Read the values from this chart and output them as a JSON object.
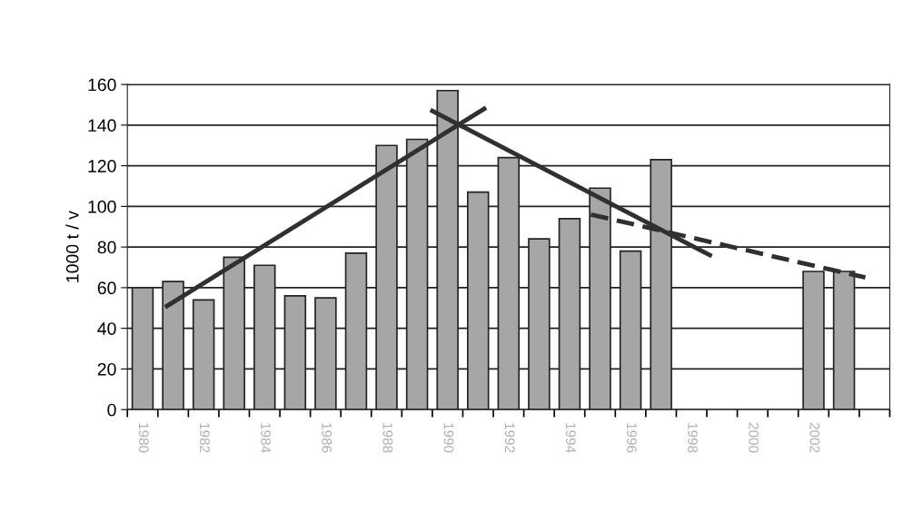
{
  "chart_data": {
    "type": "bar",
    "ylabel": "1000 t / v",
    "x": [
      1980,
      1981,
      1982,
      1983,
      1984,
      1985,
      1986,
      1987,
      1988,
      1989,
      1990,
      1991,
      1992,
      1993,
      1994,
      1995,
      1996,
      1997,
      1998,
      1999,
      2000,
      2001,
      2002,
      2003
    ],
    "series": [
      {
        "color": "#a6a6a6",
        "values": [
          60,
          63,
          54,
          75,
          71,
          56,
          55,
          77,
          130,
          133,
          157,
          107,
          124,
          84,
          94,
          109,
          78,
          123,
          null,
          null,
          null,
          null,
          68,
          68
        ]
      },
      {
        "type": "line",
        "color": "#303030",
        "line_style": "solid",
        "x": [
          1980.8,
          1991.2
        ],
        "values": [
          51,
          148
        ]
      },
      {
        "type": "line",
        "color": "#303030",
        "line_style": "solid",
        "x": [
          1989.5,
          1998.6
        ],
        "values": [
          147,
          76
        ]
      },
      {
        "type": "line",
        "color": "#303030",
        "line_style": "dashed",
        "x": [
          1994.7,
          2003.7
        ],
        "values": [
          96,
          65
        ]
      }
    ],
    "xlim": [
      1979.5,
      2004.5
    ],
    "xticks": [
      {
        "value": 1979.5,
        "label": null
      },
      {
        "value": 1980.5,
        "label": null
      },
      {
        "value": 1981.5,
        "label": null
      },
      {
        "value": 1982.5,
        "label": null
      },
      {
        "value": 1983.5,
        "label": null
      },
      {
        "value": 1984.5,
        "label": null
      },
      {
        "value": 1985.5,
        "label": null
      },
      {
        "value": 1986.5,
        "label": null
      },
      {
        "value": 1987.5,
        "label": null
      },
      {
        "value": 1988.5,
        "label": null
      },
      {
        "value": 1989.5,
        "label": null
      },
      {
        "value": 1990.5,
        "label": null
      },
      {
        "value": 1991.5,
        "label": null
      },
      {
        "value": 1992.5,
        "label": null
      },
      {
        "value": 1993.5,
        "label": null
      },
      {
        "value": 1994.5,
        "label": null
      },
      {
        "value": 1995.5,
        "label": null
      },
      {
        "value": 1996.5,
        "label": null
      },
      {
        "value": 1997.5,
        "label": null
      },
      {
        "value": 1998.5,
        "label": null
      },
      {
        "value": 1999.5,
        "label": null
      },
      {
        "value": 2000.5,
        "label": null
      },
      {
        "value": 2001.5,
        "label": null
      },
      {
        "value": 2002.5,
        "label": null
      },
      {
        "value": 2003.5,
        "label": null
      },
      {
        "value": 2004.5,
        "label": null
      },
      1980,
      1982,
      1984,
      1986,
      1988,
      1990,
      1992,
      1994,
      1996,
      1998,
      2000,
      2002
    ],
    "ylim": [
      0,
      160
    ],
    "yticks": [
      0,
      20,
      40,
      60,
      80,
      100,
      120,
      140,
      160
    ],
    "grid": "y"
  }
}
